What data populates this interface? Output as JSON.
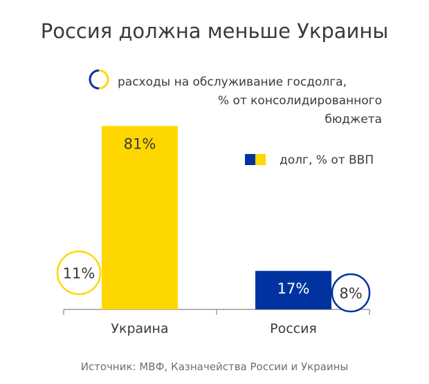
{
  "chart_data": {
    "type": "bar",
    "title": "Россия должна меньше Украины",
    "source": "Источник: МВФ, Казначейства России и Украины",
    "categories": [
      "Украина",
      "Россия"
    ],
    "series": [
      {
        "name": "долг, % от ВВП",
        "values": [
          81,
          17
        ],
        "labels": [
          "81%",
          "17%"
        ]
      },
      {
        "name": "расходы на обслуживание госдолга, % от консолидированного бюджета",
        "values": [
          11,
          8
        ],
        "labels": [
          "11%",
          "8%"
        ]
      }
    ],
    "legend": [
      {
        "key": "debt_service",
        "lines": [
          "расходы на обслуживание госдолга,",
          "% от консолидированного",
          "бюджета"
        ],
        "marker": "circle-half"
      },
      {
        "key": "debt",
        "lines": [
          "долг, % от ВВП"
        ],
        "marker": "square-half"
      }
    ],
    "legend_position": "top-right",
    "grid": false,
    "ylim": [
      0,
      100
    ],
    "colors": {
      "ukraine": "#FFD700",
      "russia": "#0033A0",
      "text": "#3a3a3a",
      "axis": "#888888"
    }
  }
}
